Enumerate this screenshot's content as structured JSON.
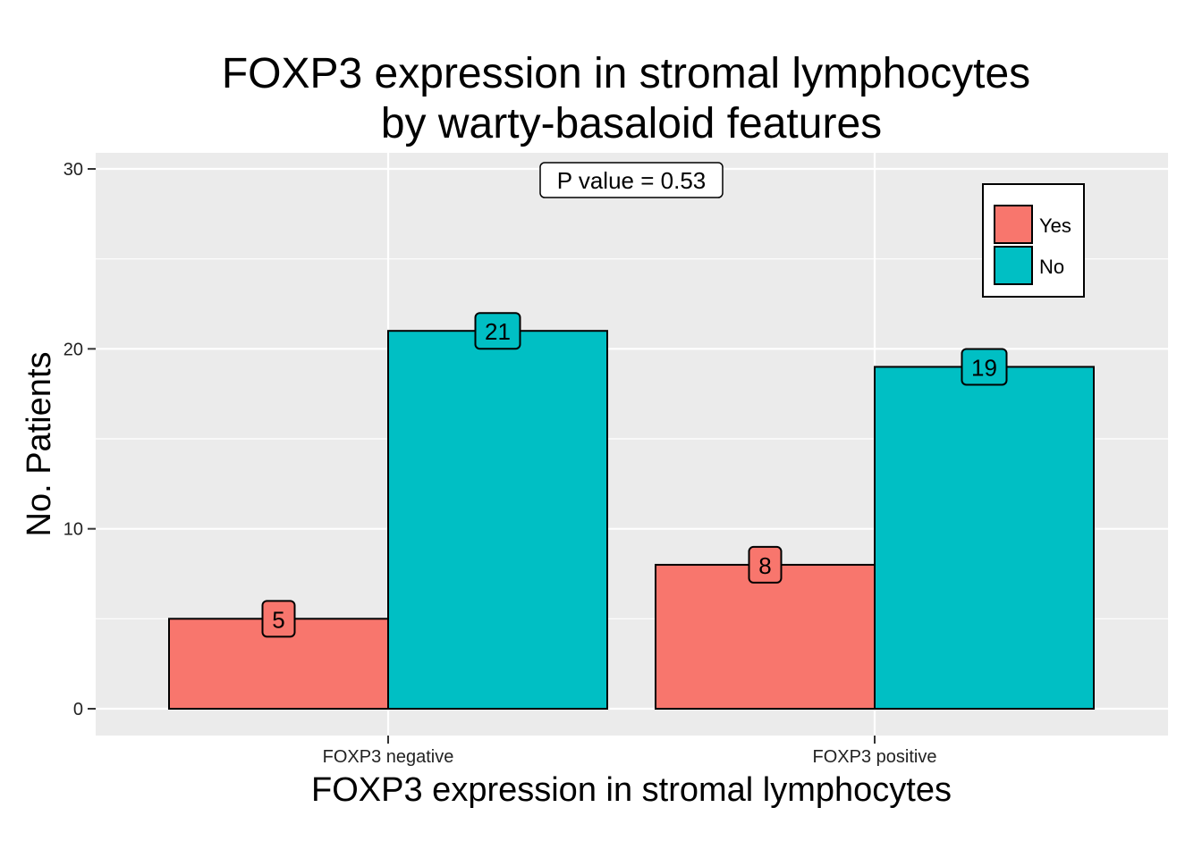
{
  "chart_data": {
    "type": "bar",
    "title_line1": "FOXP3 expression in stromal lymphocytes",
    "title_line2": "by warty-basaloid features",
    "xlabel": "FOXP3 expression in stromal lymphocytes",
    "ylabel": "No. Patients",
    "categories": [
      "FOXP3 negative",
      "FOXP3 positive"
    ],
    "series": [
      {
        "name": "Yes",
        "values": [
          5,
          8
        ],
        "color": "#F8766D"
      },
      {
        "name": "No",
        "values": [
          21,
          19
        ],
        "color": "#00BFC4"
      }
    ],
    "ylim": [
      0,
      30
    ],
    "yticks": [
      0,
      10,
      20,
      30
    ],
    "annotation": "P value = 0.53",
    "legend_position": "top-right",
    "grid": true,
    "panel_background": "#EBEBEB"
  }
}
